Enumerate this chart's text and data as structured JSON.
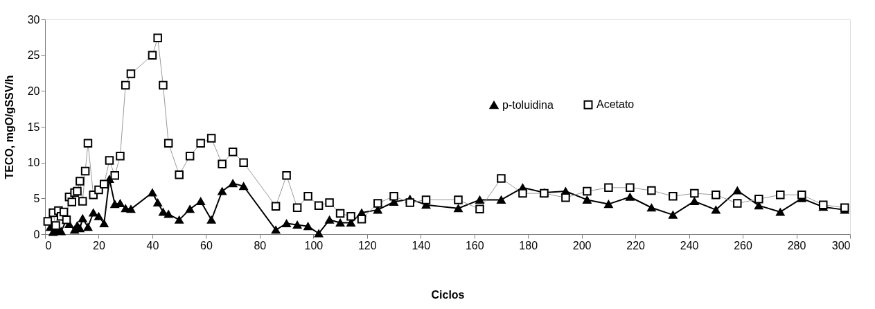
{
  "chart_data": {
    "type": "line",
    "xlabel": "Ciclos",
    "ylabel": "TECO,  mgO/gSSV/h",
    "xlim": [
      0,
      300
    ],
    "xticks": [
      0,
      20,
      40,
      60,
      80,
      100,
      120,
      140,
      160,
      180,
      200,
      220,
      240,
      260,
      280,
      300
    ],
    "ylim": [
      0,
      30
    ],
    "yticks": [
      0,
      5,
      10,
      15,
      20,
      25,
      30
    ],
    "grid": false,
    "legend": "top right",
    "line_style": "solid",
    "series": [
      {
        "name": "p-toluidina",
        "color": "#000000",
        "marker": "triangle",
        "x": [
          2,
          3,
          4,
          5,
          6,
          8,
          9,
          11,
          12,
          13,
          14,
          16,
          18,
          20,
          22,
          24,
          26,
          28,
          30,
          32,
          40,
          42,
          44,
          46,
          50,
          54,
          58,
          62,
          66,
          70,
          74,
          86,
          90,
          94,
          98,
          102,
          106,
          110,
          114,
          118,
          124,
          130,
          136,
          142,
          154,
          162,
          170,
          178,
          186,
          194,
          202,
          210,
          218,
          226,
          234,
          242,
          250,
          258,
          266,
          274,
          282,
          290,
          298
        ],
        "values": [
          1.0,
          0.3,
          0.5,
          0.5,
          0.4,
          2.0,
          1.4,
          0.6,
          1.2,
          0.8,
          2.2,
          1.0,
          3.0,
          2.5,
          1.5,
          7.7,
          4.2,
          4.3,
          3.6,
          3.5,
          5.8,
          4.4,
          3.1,
          2.8,
          2.0,
          3.5,
          4.6,
          2.0,
          6.0,
          7.1,
          6.7,
          0.6,
          1.5,
          1.3,
          1.1,
          0.1,
          2.0,
          1.6,
          1.6,
          3.0,
          3.4,
          4.5,
          4.9,
          4.1,
          3.6,
          4.8,
          4.8,
          6.5,
          5.8,
          6.0,
          4.8,
          4.2,
          5.2,
          3.7,
          2.7,
          4.6,
          3.4,
          6.1,
          4.0,
          3.1,
          5.0,
          3.8,
          3.4
        ]
      },
      {
        "name": "Acetato",
        "color": "#999999",
        "marker": "square",
        "x": [
          1,
          3,
          4,
          5,
          6,
          7,
          8,
          9,
          10,
          11,
          12,
          13,
          14,
          15,
          16,
          18,
          20,
          22,
          24,
          26,
          28,
          30,
          32,
          40,
          42,
          44,
          46,
          50,
          54,
          58,
          62,
          66,
          70,
          74,
          86,
          90,
          94,
          98,
          102,
          106,
          110,
          114,
          118,
          124,
          130,
          136,
          142,
          154,
          162,
          170,
          178,
          186,
          194,
          202,
          210,
          218,
          226,
          234,
          242,
          250,
          258,
          266,
          274,
          282,
          290,
          298
        ],
        "values": [
          1.8,
          3.0,
          1.2,
          3.3,
          2.5,
          3.1,
          2.0,
          5.2,
          4.5,
          5.8,
          6.0,
          7.4,
          4.6,
          8.8,
          12.7,
          5.5,
          6.2,
          7.0,
          10.3,
          8.2,
          10.9,
          20.8,
          22.4,
          25.0,
          27.4,
          20.8,
          12.7,
          8.3,
          10.9,
          12.7,
          13.4,
          9.8,
          11.5,
          10.0,
          3.9,
          8.2,
          3.7,
          5.3,
          4.0,
          4.4,
          2.9,
          2.5,
          2.1,
          4.3,
          5.3,
          4.4,
          4.8,
          4.8,
          3.5,
          7.8,
          5.7,
          5.7,
          5.1,
          6.0,
          6.5,
          6.5,
          6.1,
          5.3,
          5.7,
          5.5,
          4.3,
          4.9,
          5.5,
          5.5,
          4.1,
          3.7
        ]
      }
    ]
  }
}
